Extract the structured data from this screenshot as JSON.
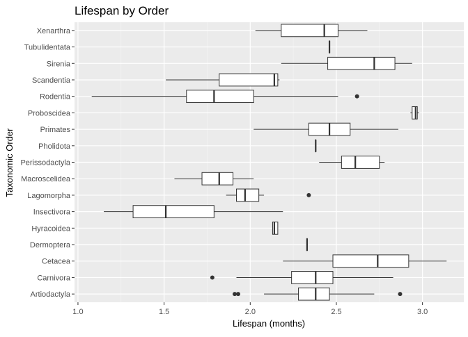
{
  "chart_data": {
    "type": "boxplot",
    "orientation": "horizontal",
    "title": "Lifespan by Order",
    "xlabel": "Lifespan (months)",
    "ylabel": "Taxonomic Order",
    "xlim": [
      0.98,
      3.24
    ],
    "x_ticks": [
      1.0,
      1.5,
      2.0,
      2.5,
      3.0
    ],
    "x_tick_labels": [
      "1.0",
      "1.5",
      "2.0",
      "2.5",
      "3.0"
    ],
    "grid": true,
    "theme": "ggplot2 grey",
    "colors": {
      "panel": "#ebebeb",
      "grid_major": "#ffffff",
      "grid_minor": "#f5f5f5",
      "box_fill": "#ffffff",
      "box_line": "#333333",
      "text": "#4d4d4d",
      "title": "#000000"
    },
    "categories": [
      "Xenarthra",
      "Tubulidentata",
      "Sirenia",
      "Scandentia",
      "Rodentia",
      "Proboscidea",
      "Primates",
      "Pholidota",
      "Perissodactyla",
      "Macroscelidea",
      "Lagomorpha",
      "Insectivora",
      "Hyracoidea",
      "Dermoptera",
      "Cetacea",
      "Carnivora",
      "Artiodactyla"
    ],
    "boxes": [
      {
        "name": "Xenarthra",
        "min": 2.03,
        "q1": 2.18,
        "median": 2.43,
        "q3": 2.51,
        "max": 2.68,
        "outliers": []
      },
      {
        "name": "Tubulidentata",
        "min": 2.46,
        "q1": 2.46,
        "median": 2.46,
        "q3": 2.46,
        "max": 2.46,
        "outliers": []
      },
      {
        "name": "Sirenia",
        "min": 2.18,
        "q1": 2.45,
        "median": 2.72,
        "q3": 2.84,
        "max": 2.94,
        "outliers": []
      },
      {
        "name": "Scandentia",
        "min": 1.51,
        "q1": 1.82,
        "median": 2.14,
        "q3": 2.16,
        "max": 2.17,
        "outliers": []
      },
      {
        "name": "Rodentia",
        "min": 1.08,
        "q1": 1.63,
        "median": 1.79,
        "q3": 2.02,
        "max": 2.51,
        "outliers": [
          2.62
        ]
      },
      {
        "name": "Proboscidea",
        "min": 2.93,
        "q1": 2.94,
        "median": 2.96,
        "q3": 2.97,
        "max": 2.98,
        "outliers": []
      },
      {
        "name": "Primates",
        "min": 2.02,
        "q1": 2.34,
        "median": 2.46,
        "q3": 2.58,
        "max": 2.86,
        "outliers": []
      },
      {
        "name": "Pholidota",
        "min": 2.38,
        "q1": 2.38,
        "median": 2.38,
        "q3": 2.38,
        "max": 2.38,
        "outliers": []
      },
      {
        "name": "Perissodactyla",
        "min": 2.4,
        "q1": 2.53,
        "median": 2.61,
        "q3": 2.75,
        "max": 2.78,
        "outliers": []
      },
      {
        "name": "Macroscelidea",
        "min": 1.56,
        "q1": 1.72,
        "median": 1.82,
        "q3": 1.9,
        "max": 2.02,
        "outliers": []
      },
      {
        "name": "Lagomorpha",
        "min": 1.86,
        "q1": 1.92,
        "median": 1.97,
        "q3": 2.05,
        "max": 2.08,
        "outliers": [
          2.34
        ]
      },
      {
        "name": "Insectivora",
        "min": 1.15,
        "q1": 1.32,
        "median": 1.51,
        "q3": 1.79,
        "max": 2.19,
        "outliers": []
      },
      {
        "name": "Hyracoidea",
        "min": 2.13,
        "q1": 2.13,
        "median": 2.14,
        "q3": 2.16,
        "max": 2.16,
        "outliers": []
      },
      {
        "name": "Dermoptera",
        "min": 2.33,
        "q1": 2.33,
        "median": 2.33,
        "q3": 2.33,
        "max": 2.33,
        "outliers": []
      },
      {
        "name": "Cetacea",
        "min": 2.19,
        "q1": 2.48,
        "median": 2.74,
        "q3": 2.92,
        "max": 3.14,
        "outliers": []
      },
      {
        "name": "Carnivora",
        "min": 1.92,
        "q1": 2.24,
        "median": 2.38,
        "q3": 2.48,
        "max": 2.83,
        "outliers": [
          1.78
        ]
      },
      {
        "name": "Artiodactyla",
        "min": 2.08,
        "q1": 2.28,
        "median": 2.38,
        "q3": 2.46,
        "max": 2.72,
        "outliers": [
          1.91,
          1.93,
          2.87
        ]
      }
    ]
  }
}
